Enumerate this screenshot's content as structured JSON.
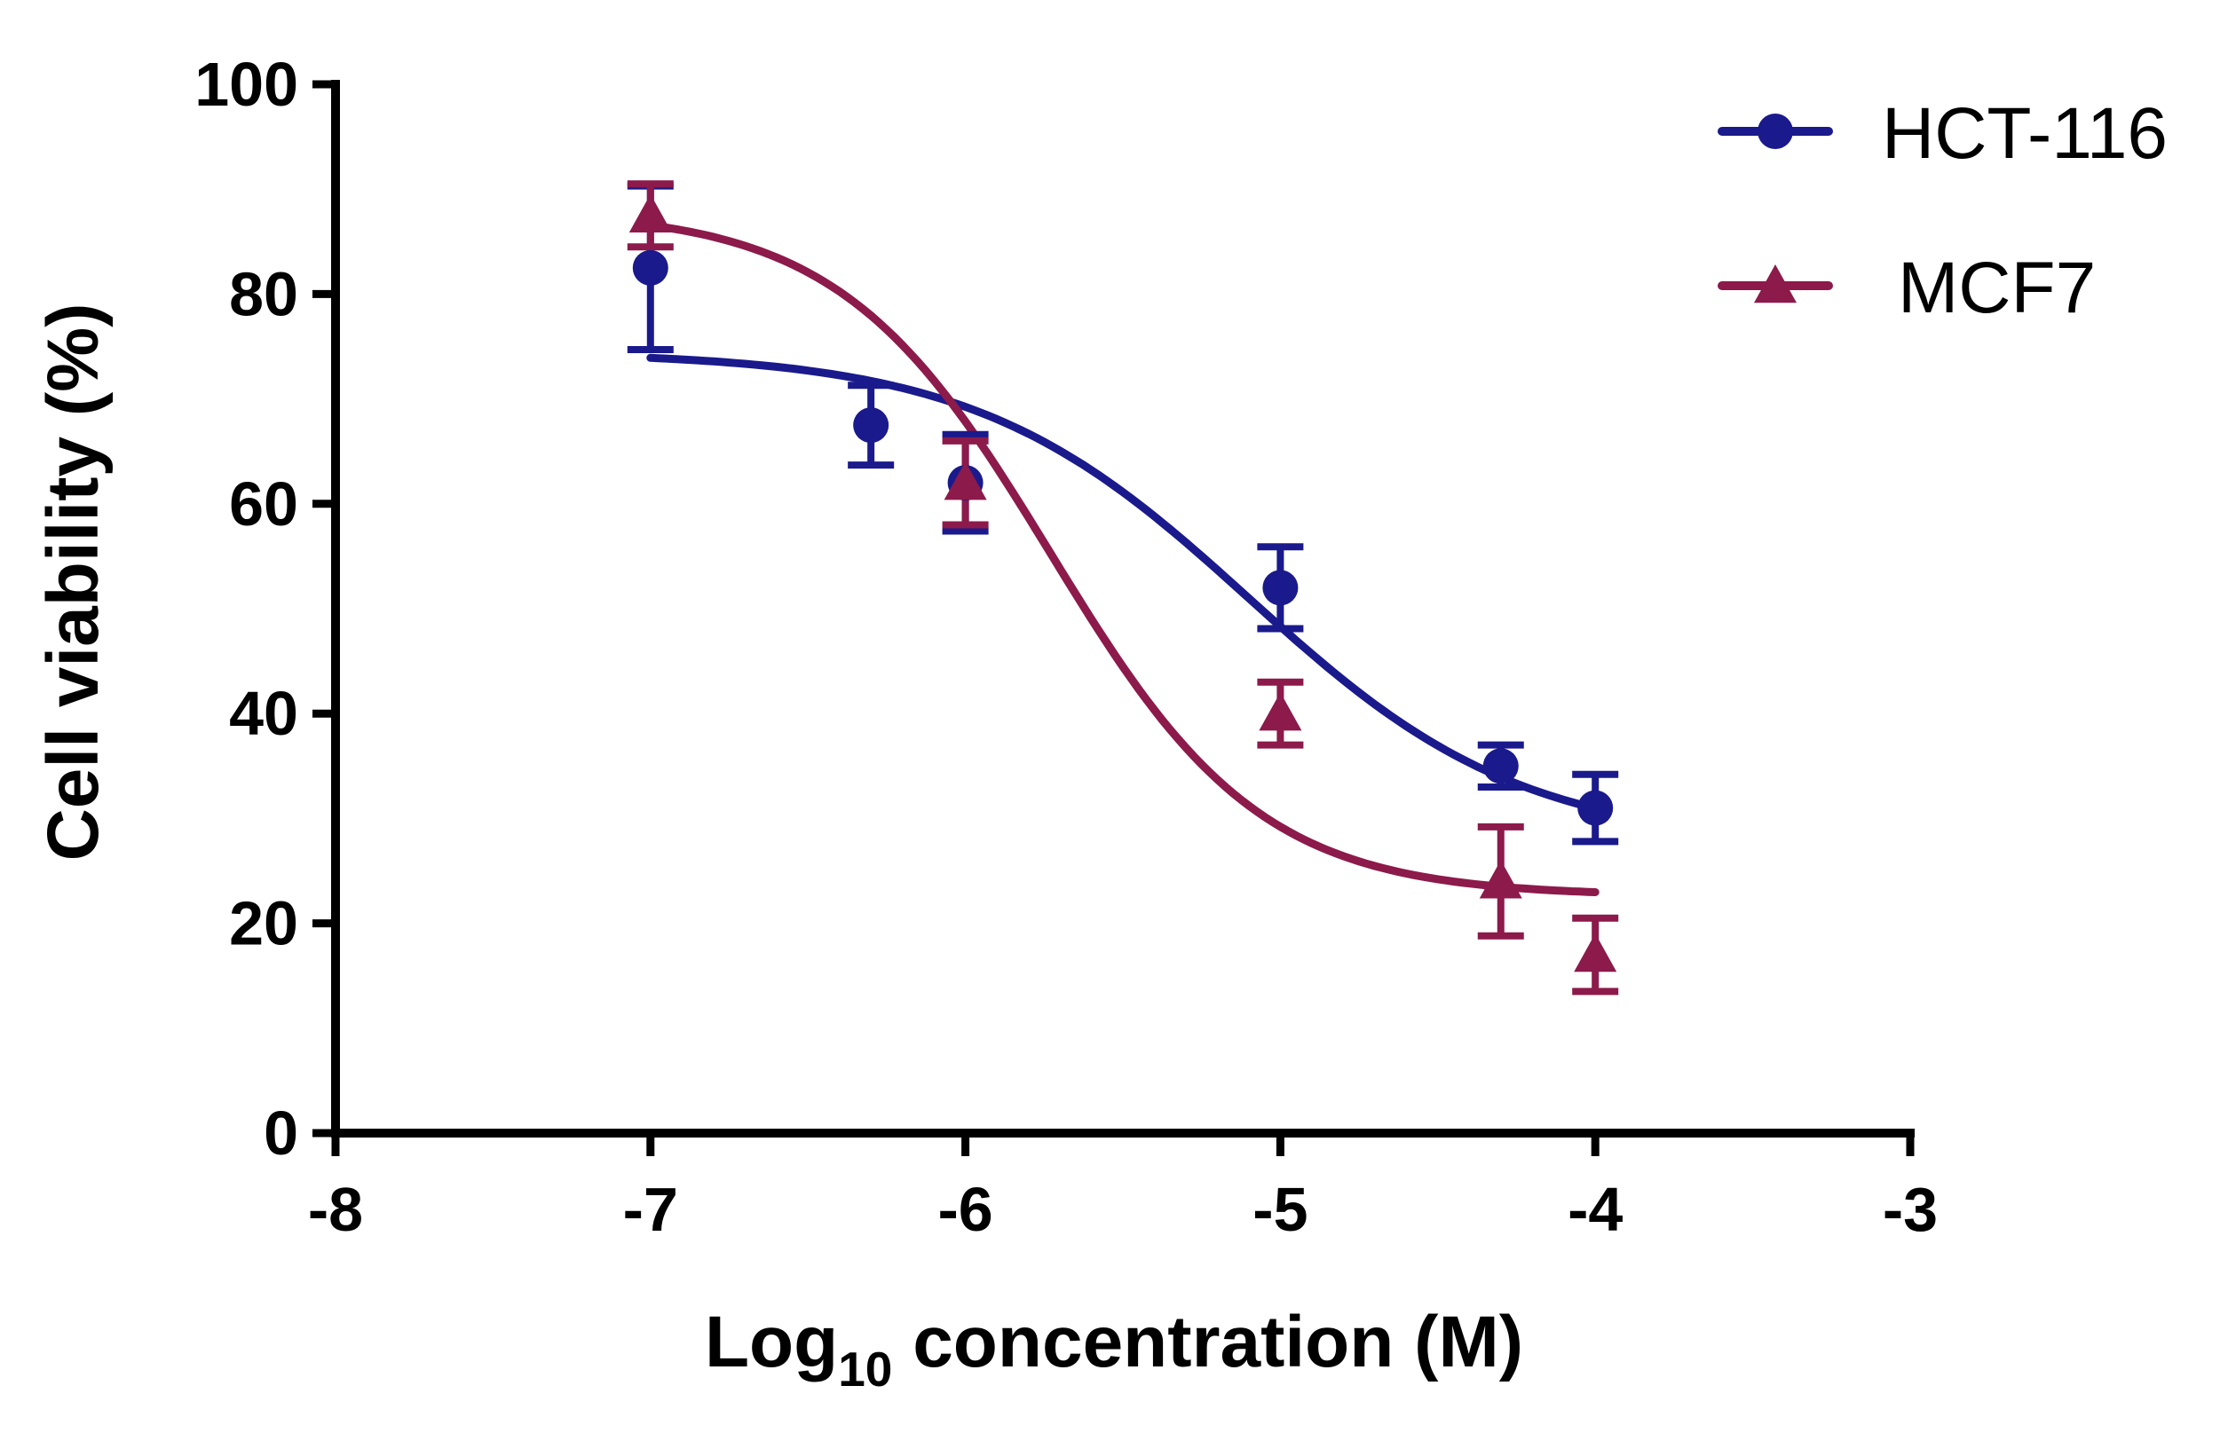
{
  "chart_data": {
    "type": "scatter",
    "title": "",
    "xlabel": {
      "main": "Log",
      "sub": "10",
      "rest": " concentration (M)"
    },
    "ylabel": "Cell viability (%)",
    "xlim": [
      -8,
      -3
    ],
    "ylim": [
      0,
      100
    ],
    "xticks": [
      -8,
      -7,
      -6,
      -5,
      -4,
      -3
    ],
    "yticks": [
      0,
      20,
      40,
      60,
      80,
      100
    ],
    "xtick_labels": [
      "-8",
      "-7",
      "-6",
      "-5",
      "-4",
      "-3"
    ],
    "ytick_labels": [
      "0",
      "20",
      "40",
      "60",
      "80",
      "100"
    ],
    "legend_position": "top-right",
    "series": [
      {
        "name": "HCT-116",
        "color": "#1a1a8c",
        "marker": "circle",
        "x": [
          -7,
          -6.3,
          -6,
          -5,
          -4.3,
          -4
        ],
        "y": [
          82.5,
          67.5,
          62,
          52,
          35,
          31
        ],
        "err": [
          7.8,
          3.8,
          4.6,
          3.9,
          2,
          3.2
        ],
        "fit": {
          "bottom": 27.5,
          "top": 74.5,
          "logEC50": -5.1,
          "hill": 1
        }
      },
      {
        "name": "MCF7",
        "color": "#8c1a4a",
        "marker": "triangle",
        "x": [
          -7,
          -6,
          -5,
          -4.3,
          -4
        ],
        "y": [
          87.5,
          62,
          40,
          24,
          17
        ],
        "err": [
          3,
          4,
          3,
          5.2,
          3.5
        ],
        "fit": {
          "bottom": 22.6,
          "top": 88,
          "logEC50": -5.73,
          "hill": 1.3
        }
      }
    ]
  }
}
